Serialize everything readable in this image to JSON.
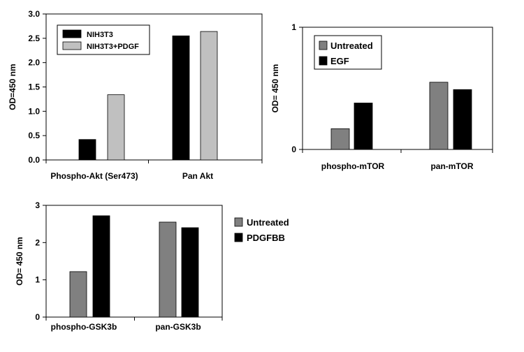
{
  "chart_data": [
    {
      "type": "bar",
      "categories": [
        "Phospho-Akt (Ser473)",
        "Pan Akt"
      ],
      "series": [
        {
          "name": "NIH3T3",
          "color": "#000000",
          "values": [
            0.42,
            2.55
          ]
        },
        {
          "name": "NIH3T3+PDGF",
          "color": "#c0c0c0",
          "values": [
            1.34,
            2.64
          ]
        }
      ],
      "ylabel": "OD=450 nm",
      "ylim": [
        0,
        3.0
      ],
      "yticks": [
        "0.0",
        "0.5",
        "1.0",
        "1.5",
        "2.0",
        "2.5",
        "3.0"
      ],
      "legend_placement": "top-left",
      "grid": false
    },
    {
      "type": "bar",
      "categories": [
        "phospho-mTOR",
        "pan-mTOR"
      ],
      "series": [
        {
          "name": "Untreated",
          "color": "#808080",
          "values": [
            0.17,
            0.55
          ]
        },
        {
          "name": "EGF",
          "color": "#000000",
          "values": [
            0.38,
            0.49
          ]
        }
      ],
      "ylabel": "OD= 450 nm",
      "ylim": [
        0,
        1
      ],
      "yticks": [
        "0",
        "1"
      ],
      "legend_placement": "top-left",
      "grid": false
    },
    {
      "type": "bar",
      "categories": [
        "phospho-GSK3b",
        "pan-GSK3b"
      ],
      "series": [
        {
          "name": "Untreated",
          "color": "#808080",
          "values": [
            1.22,
            2.55
          ]
        },
        {
          "name": "PDGFBB",
          "color": "#000000",
          "values": [
            2.72,
            2.4
          ]
        }
      ],
      "ylabel": "OD= 450 nm",
      "ylim": [
        0,
        3
      ],
      "yticks": [
        "0",
        "1",
        "2",
        "3"
      ],
      "legend_placement": "outside-right",
      "grid": false
    }
  ]
}
